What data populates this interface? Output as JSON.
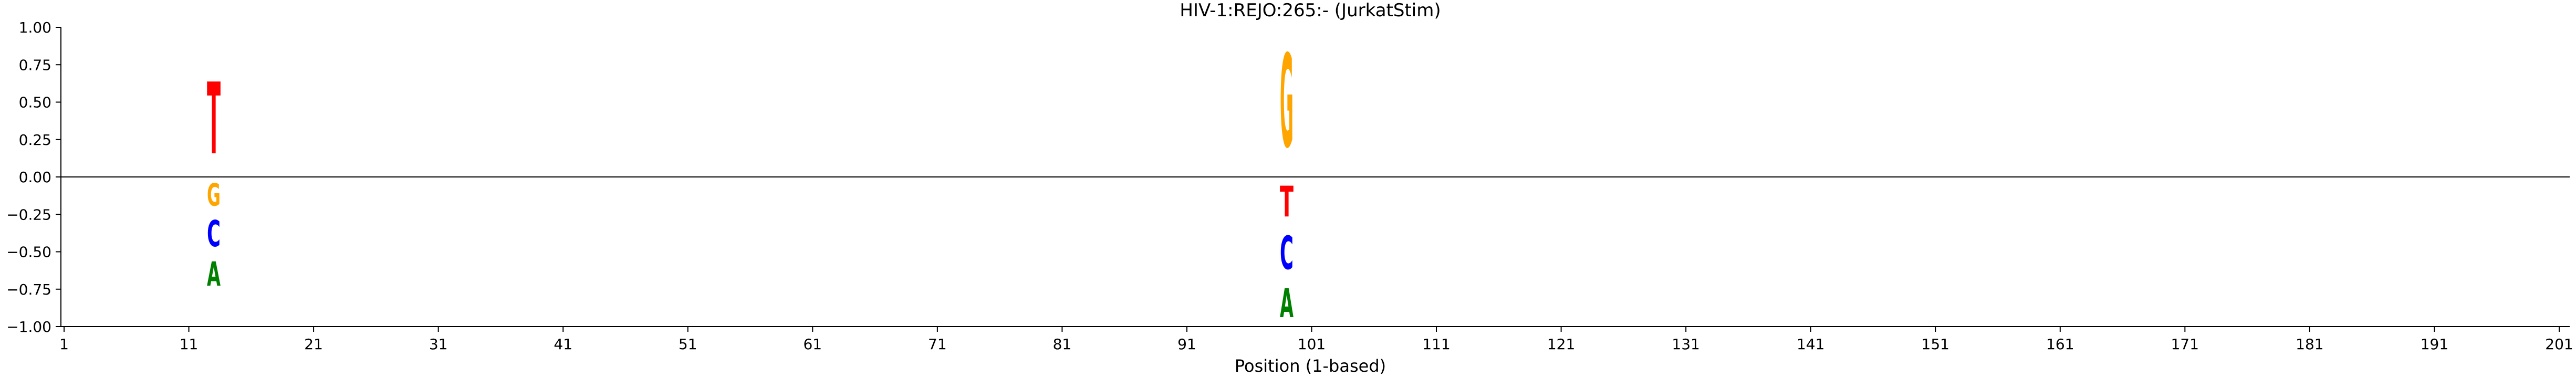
{
  "chart_data": {
    "type": "sequence-logo",
    "title": "HIV-1:REJO:265:-  (JurkatStim)",
    "xlabel": "Position (1-based)",
    "ylabel": "",
    "xlim": [
      1,
      201
    ],
    "ylim": [
      -1.0,
      1.0
    ],
    "xticks": [
      1,
      11,
      21,
      31,
      41,
      51,
      61,
      71,
      81,
      91,
      101,
      111,
      121,
      131,
      141,
      151,
      161,
      171,
      181,
      191,
      201
    ],
    "yticks": [
      1.0,
      0.75,
      0.5,
      0.25,
      0.0,
      -0.25,
      -0.5,
      -0.75,
      -1.0
    ],
    "ytick_labels": [
      "1.00",
      "0.75",
      "0.50",
      "0.25",
      "0.00",
      "−0.25",
      "−0.50",
      "−0.75",
      "−1.00"
    ],
    "zero_line": true,
    "grid": false,
    "colors": {
      "A": "#008000",
      "C": "#0000ff",
      "G": "#ffa500",
      "T": "#ff0000"
    },
    "stacks": [
      {
        "position": 13,
        "letters": [
          {
            "base": "T",
            "y0": 0.0,
            "y1": 0.77
          },
          {
            "base": "G",
            "y0": 0.0,
            "y1": -0.24
          },
          {
            "base": "C",
            "y0": -0.24,
            "y1": -0.52
          },
          {
            "base": "A",
            "y0": -0.52,
            "y1": -0.78
          }
        ]
      },
      {
        "position": 99,
        "letters": [
          {
            "base": "G",
            "y0": 0.0,
            "y1": 1.0
          },
          {
            "base": "T",
            "y0": 0.0,
            "y1": -0.33
          },
          {
            "base": "C",
            "y0": -0.33,
            "y1": -0.69
          },
          {
            "base": "A",
            "y0": -0.69,
            "y1": -1.0
          }
        ]
      }
    ]
  }
}
